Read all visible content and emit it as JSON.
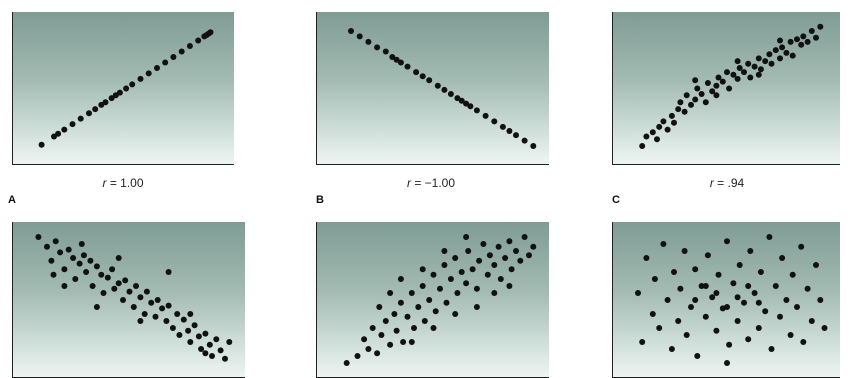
{
  "chart_data": [
    {
      "type": "scatter",
      "letter": "A",
      "r_prefix": "r",
      "r_value": "= 1.00",
      "xlim": [
        0,
        100
      ],
      "ylim": [
        0,
        100
      ],
      "points": [
        [
          10,
          9
        ],
        [
          16,
          15
        ],
        [
          18,
          17
        ],
        [
          21,
          20
        ],
        [
          25,
          24
        ],
        [
          29,
          28
        ],
        [
          33,
          32
        ],
        [
          36,
          35
        ],
        [
          39,
          38
        ],
        [
          41,
          40
        ],
        [
          44,
          43
        ],
        [
          46,
          45
        ],
        [
          48,
          47
        ],
        [
          51,
          50
        ],
        [
          54,
          53
        ],
        [
          58,
          57
        ],
        [
          62,
          61
        ],
        [
          66,
          65
        ],
        [
          70,
          69
        ],
        [
          74,
          73
        ],
        [
          78,
          77
        ],
        [
          82,
          81
        ],
        [
          86,
          85
        ],
        [
          89,
          88
        ],
        [
          90,
          89
        ],
        [
          91,
          90
        ],
        [
          92,
          91
        ]
      ]
    },
    {
      "type": "scatter",
      "letter": "B",
      "r_prefix": "r",
      "r_value": "= −1.00",
      "xlim": [
        0,
        100
      ],
      "ylim": [
        0,
        100
      ],
      "points": [
        [
          12,
          92
        ],
        [
          16,
          88
        ],
        [
          20,
          84
        ],
        [
          24,
          80
        ],
        [
          28,
          77
        ],
        [
          31,
          73
        ],
        [
          33,
          71
        ],
        [
          35,
          69
        ],
        [
          38,
          66
        ],
        [
          42,
          62
        ],
        [
          45,
          59
        ],
        [
          48,
          56
        ],
        [
          52,
          52
        ],
        [
          55,
          49
        ],
        [
          58,
          46
        ],
        [
          61,
          43
        ],
        [
          63,
          41
        ],
        [
          65,
          39
        ],
        [
          67,
          37
        ],
        [
          70,
          34
        ],
        [
          74,
          30
        ],
        [
          78,
          26
        ],
        [
          82,
          22
        ],
        [
          85,
          19
        ],
        [
          88,
          16
        ],
        [
          92,
          12
        ],
        [
          96,
          8
        ]
      ]
    },
    {
      "type": "scatter",
      "letter": "C",
      "r_prefix": "r",
      "r_value": "= .94",
      "xlim": [
        0,
        100
      ],
      "ylim": [
        0,
        100
      ],
      "points": [
        [
          10,
          8
        ],
        [
          12,
          15
        ],
        [
          15,
          18
        ],
        [
          17,
          13
        ],
        [
          18,
          22
        ],
        [
          20,
          26
        ],
        [
          22,
          20
        ],
        [
          24,
          30
        ],
        [
          25,
          25
        ],
        [
          27,
          35
        ],
        [
          28,
          40
        ],
        [
          30,
          33
        ],
        [
          31,
          45
        ],
        [
          33,
          38
        ],
        [
          35,
          42
        ],
        [
          36,
          50
        ],
        [
          38,
          46
        ],
        [
          40,
          40
        ],
        [
          41,
          54
        ],
        [
          43,
          48
        ],
        [
          45,
          52
        ],
        [
          46,
          58
        ],
        [
          48,
          55
        ],
        [
          50,
          62
        ],
        [
          51,
          50
        ],
        [
          53,
          60
        ],
        [
          55,
          57
        ],
        [
          56,
          65
        ],
        [
          58,
          62
        ],
        [
          60,
          68
        ],
        [
          61,
          58
        ],
        [
          63,
          66
        ],
        [
          65,
          72
        ],
        [
          66,
          64
        ],
        [
          68,
          70
        ],
        [
          70,
          75
        ],
        [
          71,
          68
        ],
        [
          73,
          78
        ],
        [
          75,
          72
        ],
        [
          76,
          80
        ],
        [
          78,
          76
        ],
        [
          80,
          84
        ],
        [
          81,
          74
        ],
        [
          83,
          86
        ],
        [
          85,
          82
        ],
        [
          86,
          88
        ],
        [
          88,
          84
        ],
        [
          90,
          92
        ],
        [
          92,
          87
        ],
        [
          94,
          95
        ],
        [
          35,
          56
        ],
        [
          45,
          45
        ],
        [
          55,
          70
        ],
        [
          65,
          60
        ],
        [
          75,
          85
        ]
      ]
    },
    {
      "type": "scatter",
      "letter": "",
      "r_prefix": "",
      "r_value": "",
      "xlim": [
        0,
        100
      ],
      "ylim": [
        0,
        100
      ],
      "points": [
        [
          8,
          95
        ],
        [
          12,
          88
        ],
        [
          14,
          78
        ],
        [
          16,
          92
        ],
        [
          18,
          84
        ],
        [
          20,
          72
        ],
        [
          22,
          86
        ],
        [
          24,
          80
        ],
        [
          25,
          65
        ],
        [
          27,
          76
        ],
        [
          29,
          82
        ],
        [
          30,
          70
        ],
        [
          32,
          78
        ],
        [
          33,
          60
        ],
        [
          35,
          74
        ],
        [
          37,
          68
        ],
        [
          38,
          55
        ],
        [
          40,
          66
        ],
        [
          42,
          72
        ],
        [
          43,
          58
        ],
        [
          45,
          62
        ],
        [
          47,
          50
        ],
        [
          48,
          64
        ],
        [
          50,
          56
        ],
        [
          52,
          45
        ],
        [
          53,
          60
        ],
        [
          55,
          52
        ],
        [
          57,
          40
        ],
        [
          58,
          56
        ],
        [
          60,
          48
        ],
        [
          62,
          38
        ],
        [
          63,
          50
        ],
        [
          65,
          44
        ],
        [
          67,
          35
        ],
        [
          68,
          46
        ],
        [
          70,
          30
        ],
        [
          72,
          40
        ],
        [
          73,
          25
        ],
        [
          75,
          36
        ],
        [
          77,
          28
        ],
        [
          78,
          20
        ],
        [
          80,
          32
        ],
        [
          82,
          24
        ],
        [
          83,
          15
        ],
        [
          85,
          26
        ],
        [
          87,
          18
        ],
        [
          88,
          10
        ],
        [
          90,
          22
        ],
        [
          92,
          14
        ],
        [
          94,
          8
        ],
        [
          96,
          20
        ],
        [
          15,
          68
        ],
        [
          28,
          90
        ],
        [
          45,
          80
        ],
        [
          55,
          35
        ],
        [
          68,
          70
        ],
        [
          78,
          40
        ],
        [
          85,
          12
        ],
        [
          35,
          45
        ],
        [
          20,
          60
        ]
      ]
    },
    {
      "type": "scatter",
      "letter": "",
      "r_prefix": "",
      "r_value": "",
      "xlim": [
        0,
        100
      ],
      "ylim": [
        0,
        100
      ],
      "points": [
        [
          10,
          5
        ],
        [
          15,
          10
        ],
        [
          18,
          22
        ],
        [
          20,
          15
        ],
        [
          22,
          30
        ],
        [
          24,
          12
        ],
        [
          26,
          25
        ],
        [
          28,
          35
        ],
        [
          30,
          18
        ],
        [
          32,
          40
        ],
        [
          33,
          28
        ],
        [
          35,
          48
        ],
        [
          36,
          20
        ],
        [
          38,
          38
        ],
        [
          40,
          55
        ],
        [
          41,
          30
        ],
        [
          43,
          45
        ],
        [
          45,
          60
        ],
        [
          46,
          35
        ],
        [
          48,
          50
        ],
        [
          50,
          68
        ],
        [
          51,
          42
        ],
        [
          53,
          58
        ],
        [
          55,
          75
        ],
        [
          56,
          48
        ],
        [
          58,
          65
        ],
        [
          60,
          80
        ],
        [
          61,
          55
        ],
        [
          63,
          70
        ],
        [
          65,
          62
        ],
        [
          66,
          85
        ],
        [
          68,
          72
        ],
        [
          70,
          58
        ],
        [
          71,
          78
        ],
        [
          73,
          90
        ],
        [
          75,
          68
        ],
        [
          76,
          82
        ],
        [
          78,
          75
        ],
        [
          80,
          88
        ],
        [
          81,
          65
        ],
        [
          83,
          80
        ],
        [
          85,
          92
        ],
        [
          86,
          72
        ],
        [
          88,
          85
        ],
        [
          90,
          78
        ],
        [
          92,
          95
        ],
        [
          94,
          82
        ],
        [
          96,
          88
        ],
        [
          25,
          45
        ],
        [
          30,
          55
        ],
        [
          40,
          20
        ],
        [
          50,
          30
        ],
        [
          60,
          40
        ],
        [
          70,
          45
        ],
        [
          78,
          55
        ],
        [
          45,
          72
        ],
        [
          55,
          85
        ],
        [
          35,
          65
        ],
        [
          65,
          95
        ],
        [
          85,
          60
        ]
      ]
    },
    {
      "type": "scatter",
      "letter": "",
      "r_prefix": "",
      "r_value": "",
      "xlim": [
        0,
        100
      ],
      "ylim": [
        0,
        100
      ],
      "points": [
        [
          8,
          55
        ],
        [
          10,
          20
        ],
        [
          12,
          80
        ],
        [
          15,
          40
        ],
        [
          16,
          65
        ],
        [
          18,
          30
        ],
        [
          20,
          90
        ],
        [
          22,
          50
        ],
        [
          24,
          15
        ],
        [
          25,
          70
        ],
        [
          27,
          35
        ],
        [
          28,
          58
        ],
        [
          30,
          85
        ],
        [
          31,
          25
        ],
        [
          33,
          45
        ],
        [
          35,
          72
        ],
        [
          36,
          10
        ],
        [
          38,
          60
        ],
        [
          40,
          38
        ],
        [
          41,
          82
        ],
        [
          43,
          52
        ],
        [
          45,
          28
        ],
        [
          46,
          68
        ],
        [
          48,
          44
        ],
        [
          50,
          92
        ],
        [
          51,
          18
        ],
        [
          53,
          62
        ],
        [
          55,
          35
        ],
        [
          56,
          75
        ],
        [
          58,
          48
        ],
        [
          60,
          22
        ],
        [
          61,
          85
        ],
        [
          63,
          55
        ],
        [
          65,
          30
        ],
        [
          66,
          70
        ],
        [
          68,
          42
        ],
        [
          70,
          95
        ],
        [
          71,
          15
        ],
        [
          73,
          60
        ],
        [
          75,
          38
        ],
        [
          76,
          80
        ],
        [
          78,
          50
        ],
        [
          80,
          25
        ],
        [
          81,
          68
        ],
        [
          83,
          45
        ],
        [
          85,
          88
        ],
        [
          86,
          20
        ],
        [
          88,
          58
        ],
        [
          90,
          35
        ],
        [
          92,
          75
        ],
        [
          94,
          50
        ],
        [
          96,
          30
        ],
        [
          45,
          55
        ],
        [
          55,
          52
        ],
        [
          50,
          45
        ],
        [
          40,
          60
        ],
        [
          60,
          60
        ],
        [
          35,
          50
        ],
        [
          65,
          48
        ],
        [
          50,
          5
        ]
      ]
    }
  ]
}
